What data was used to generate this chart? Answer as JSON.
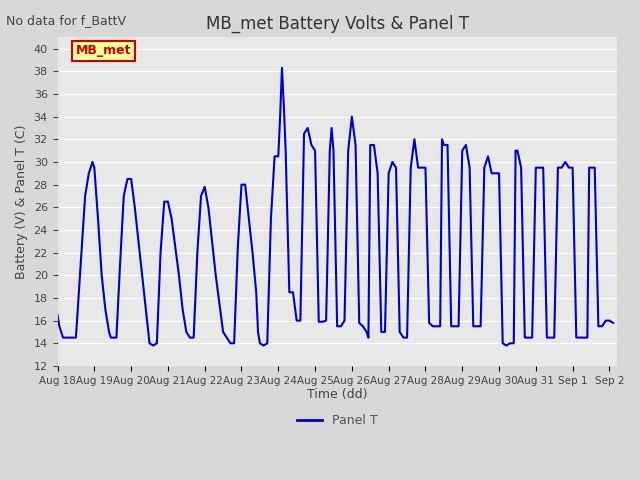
{
  "title": "MB_met Battery Volts & Panel T",
  "no_data_label": "No data for f_BattV",
  "ylabel": "Battery (V) & Panel T (C)",
  "xlabel": "Time (dd)",
  "ylim": [
    12,
    41
  ],
  "yticks": [
    12,
    14,
    16,
    18,
    20,
    22,
    24,
    26,
    28,
    30,
    32,
    34,
    36,
    38,
    40
  ],
  "line_color": "#0000cc",
  "line_width": 1.5,
  "legend_label": "Panel T",
  "legend_text_color": "#555555",
  "box_label": "MB_met",
  "box_facecolor": "#ffff99",
  "box_edgecolor": "#cc0000",
  "box_textcolor": "#cc0000",
  "background_color": "#e8e8e8",
  "plot_bg_color": "#e0e0e0",
  "grid_color": "#ffffff",
  "title_color": "#333333",
  "x_start": 18.0,
  "x_end": 33.2,
  "x_tick_labels": [
    "Aug 18",
    "Aug 19",
    "Aug 20",
    "Aug 21",
    "Aug 22",
    "Aug 23",
    "Aug 24",
    "Aug 25",
    "Aug 26",
    "Aug 27",
    "Aug 28",
    "Aug 29",
    "Aug 30",
    "Aug 31",
    "Sep 1",
    "Sep 2"
  ],
  "x_tick_positions": [
    18,
    19,
    20,
    21,
    22,
    23,
    24,
    25,
    26,
    27,
    28,
    29,
    30,
    31,
    32,
    33
  ],
  "panel_t_x": [
    18.0,
    18.05,
    18.15,
    18.3,
    18.5,
    18.65,
    18.75,
    18.85,
    18.95,
    19.0,
    19.1,
    19.2,
    19.3,
    19.4,
    19.45,
    19.5,
    19.6,
    19.7,
    19.8,
    19.9,
    20.0,
    20.1,
    20.2,
    20.3,
    20.4,
    20.45,
    20.5,
    20.6,
    20.7,
    20.8,
    20.9,
    21.0,
    21.1,
    21.2,
    21.3,
    21.4,
    21.5,
    21.6,
    21.7,
    21.8,
    21.9,
    22.0,
    22.1,
    22.2,
    22.3,
    22.4,
    22.5,
    22.6,
    22.7,
    22.8,
    22.9,
    23.0,
    23.1,
    23.2,
    23.3,
    23.4,
    23.45,
    23.5,
    23.6,
    23.7,
    23.8,
    23.9,
    24.0,
    24.05,
    24.1,
    24.15,
    24.2,
    24.3,
    24.4,
    24.5,
    24.6,
    24.7,
    24.8,
    24.9,
    25.0,
    25.1,
    25.2,
    25.3,
    25.4,
    25.45,
    25.5,
    25.6,
    25.7,
    25.8,
    25.9,
    26.0,
    26.1,
    26.2,
    26.3,
    26.4,
    26.45,
    26.5,
    26.6,
    26.7,
    26.8,
    26.9,
    27.0,
    27.1,
    27.2,
    27.3,
    27.4,
    27.45,
    27.5,
    27.6,
    27.7,
    27.8,
    27.9,
    28.0,
    28.1,
    28.2,
    28.3,
    28.4,
    28.45,
    28.5,
    28.6,
    28.7,
    28.8,
    28.9,
    29.0,
    29.1,
    29.2,
    29.3,
    29.4,
    29.45,
    29.5,
    29.6,
    29.7,
    29.8,
    29.9,
    30.0,
    30.1,
    30.2,
    30.3,
    30.4,
    30.45,
    30.5,
    30.6,
    30.7,
    30.8,
    30.9,
    31.0,
    31.1,
    31.2,
    31.3,
    31.4,
    31.45,
    31.5,
    31.6,
    31.7,
    31.8,
    31.9,
    32.0,
    32.1,
    32.2,
    32.3,
    32.4,
    32.45,
    32.5,
    32.6,
    32.7,
    32.8,
    32.9,
    33.0,
    33.1
  ],
  "panel_t_y": [
    16.5,
    15.5,
    14.5,
    14.5,
    14.5,
    22.0,
    27.0,
    29.0,
    30.0,
    29.5,
    25.0,
    20.0,
    17.0,
    15.0,
    14.5,
    14.5,
    14.5,
    21.0,
    27.0,
    28.5,
    28.5,
    26.0,
    23.0,
    20.0,
    17.0,
    15.5,
    14.0,
    13.8,
    14.0,
    22.0,
    26.5,
    26.5,
    25.0,
    22.5,
    20.0,
    17.0,
    15.0,
    14.5,
    14.5,
    22.0,
    27.0,
    27.8,
    26.0,
    23.0,
    20.0,
    17.5,
    15.0,
    14.5,
    14.0,
    14.0,
    22.5,
    28.0,
    28.0,
    25.0,
    22.0,
    18.5,
    15.0,
    14.0,
    13.8,
    14.0,
    25.0,
    30.5,
    30.5,
    34.0,
    38.3,
    35.0,
    31.0,
    18.5,
    18.5,
    16.0,
    16.0,
    32.5,
    33.0,
    31.5,
    31.0,
    15.9,
    15.9,
    16.0,
    31.0,
    33.0,
    31.0,
    15.5,
    15.5,
    16.0,
    31.0,
    34.0,
    31.5,
    15.8,
    15.5,
    15.0,
    14.5,
    31.5,
    31.5,
    29.0,
    15.0,
    15.0,
    29.0,
    30.0,
    29.5,
    15.0,
    14.5,
    14.5,
    14.5,
    29.5,
    32.0,
    29.5,
    29.5,
    29.5,
    15.8,
    15.5,
    15.5,
    15.5,
    32.0,
    31.5,
    31.5,
    15.5,
    15.5,
    15.5,
    31.0,
    31.5,
    29.5,
    15.5,
    15.5,
    15.5,
    15.5,
    29.5,
    30.5,
    29.0,
    29.0,
    29.0,
    14.0,
    13.8,
    14.0,
    14.0,
    31.0,
    31.0,
    29.5,
    14.5,
    14.5,
    14.5,
    29.5,
    29.5,
    29.5,
    14.5,
    14.5,
    14.5,
    14.5,
    29.5,
    29.5,
    30.0,
    29.5,
    29.5,
    14.5,
    14.5,
    14.5,
    14.5,
    29.5,
    29.5,
    29.5,
    15.5,
    15.5,
    16.0,
    16.0,
    15.8
  ]
}
